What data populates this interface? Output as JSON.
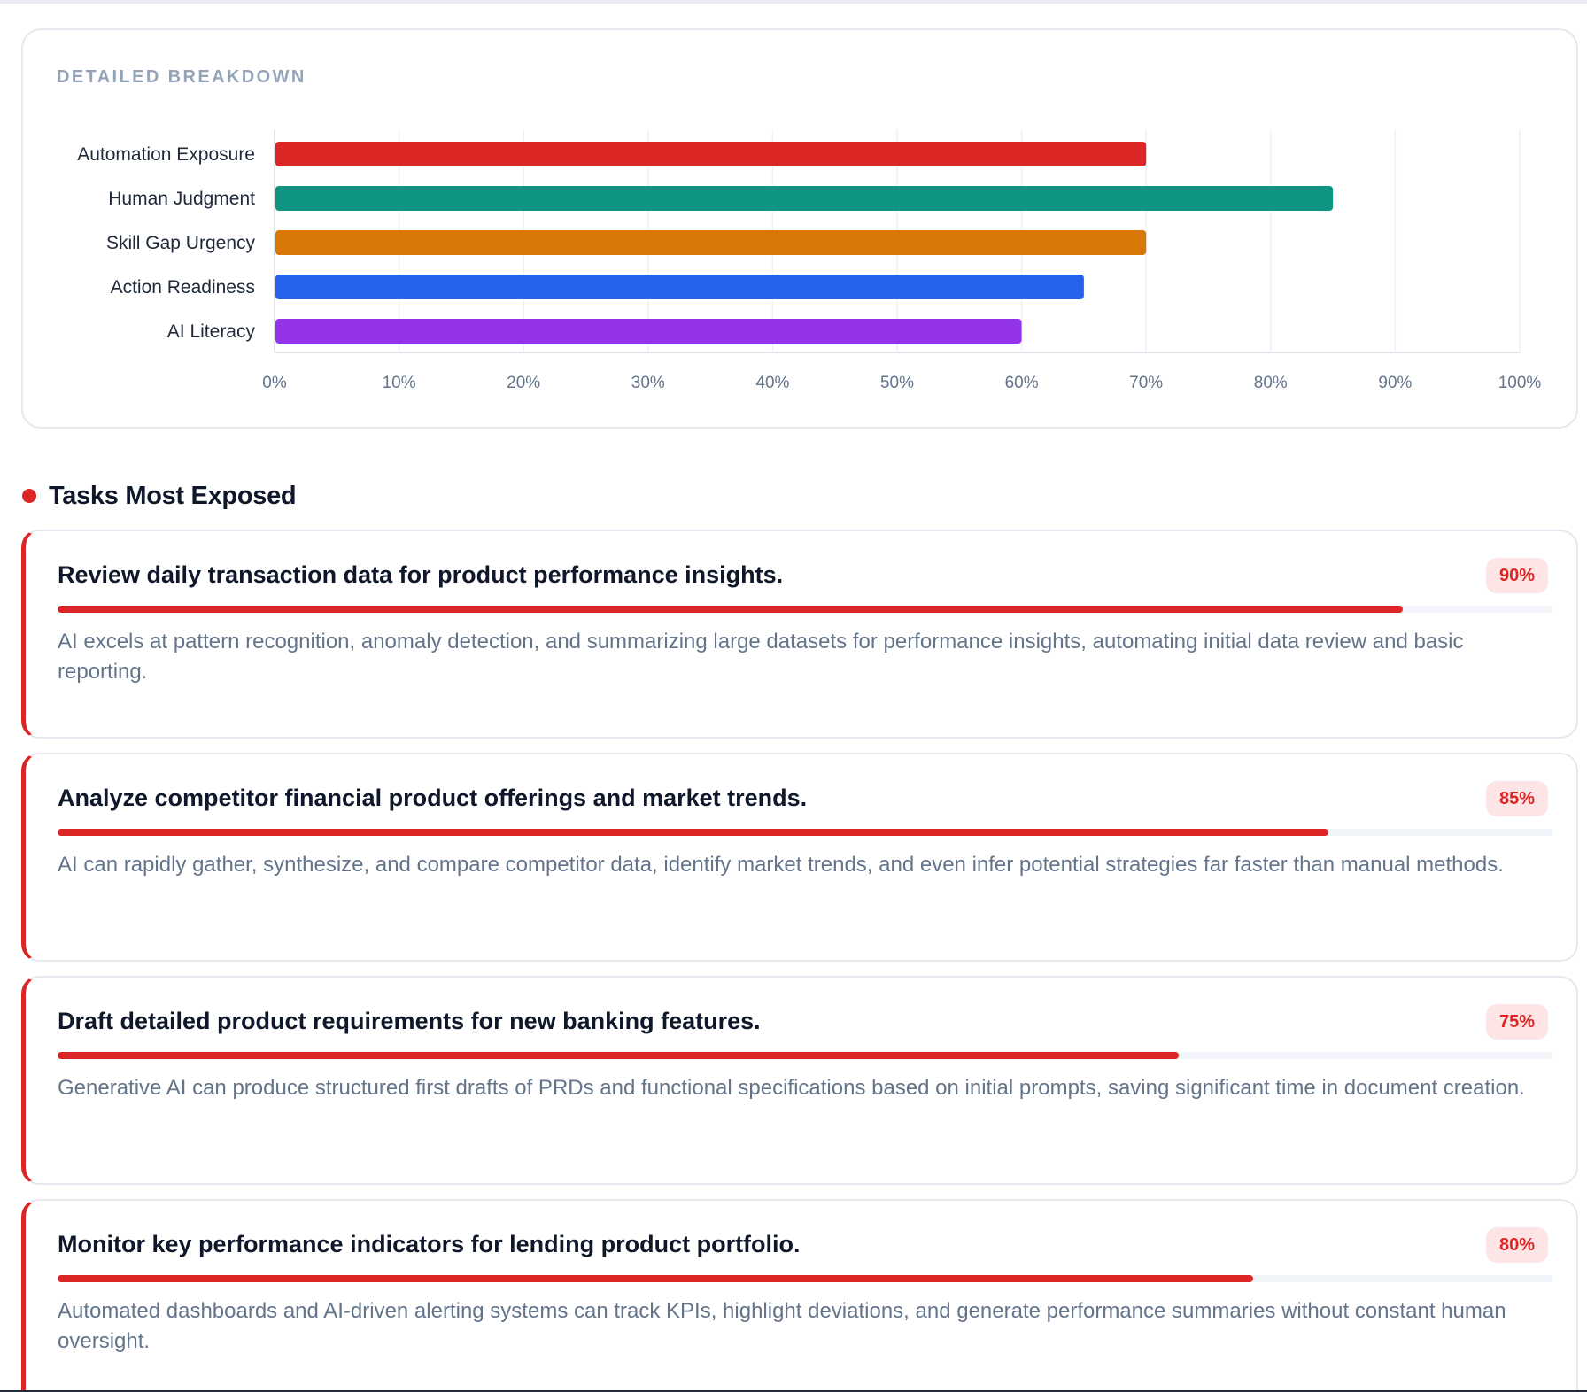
{
  "breakdown": {
    "title": "DETAILED BREAKDOWN"
  },
  "chart_data": {
    "type": "bar",
    "orientation": "horizontal",
    "categories": [
      "Automation Exposure",
      "Human Judgment",
      "Skill Gap Urgency",
      "Action Readiness",
      "AI Literacy"
    ],
    "values": [
      70,
      85,
      70,
      65,
      60
    ],
    "colors": [
      "#dc2626",
      "#0f9582",
      "#d97706",
      "#2563eb",
      "#9333ea"
    ],
    "xlim": [
      0,
      100
    ],
    "ticks": [
      "0%",
      "10%",
      "20%",
      "30%",
      "40%",
      "50%",
      "60%",
      "70%",
      "80%",
      "90%",
      "100%"
    ],
    "grid": "vertical",
    "legend": "none",
    "title": "",
    "xlabel": "",
    "ylabel": ""
  },
  "tasks_section": {
    "title": "Tasks Most Exposed",
    "accent": "#dc2626",
    "items": [
      {
        "title": "Review daily transaction data for product performance insights.",
        "percent_label": "90%",
        "percent": 90,
        "description": "AI excels at pattern recognition, anomaly detection, and summarizing large datasets for performance insights, automating initial data review and basic reporting."
      },
      {
        "title": "Analyze competitor financial product offerings and market trends.",
        "percent_label": "85%",
        "percent": 85,
        "description": "AI can rapidly gather, synthesize, and compare competitor data, identify market trends, and even infer potential strategies far faster than manual methods."
      },
      {
        "title": "Draft detailed product requirements for new banking features.",
        "percent_label": "75%",
        "percent": 75,
        "description": "Generative AI can produce structured first drafts of PRDs and functional specifications based on initial prompts, saving significant time in document creation."
      },
      {
        "title": "Monitor key performance indicators for lending product portfolio.",
        "percent_label": "80%",
        "percent": 80,
        "description": "Automated dashboards and AI-driven alerting systems can track KPIs, highlight deviations, and generate performance summaries without constant human oversight."
      }
    ]
  }
}
